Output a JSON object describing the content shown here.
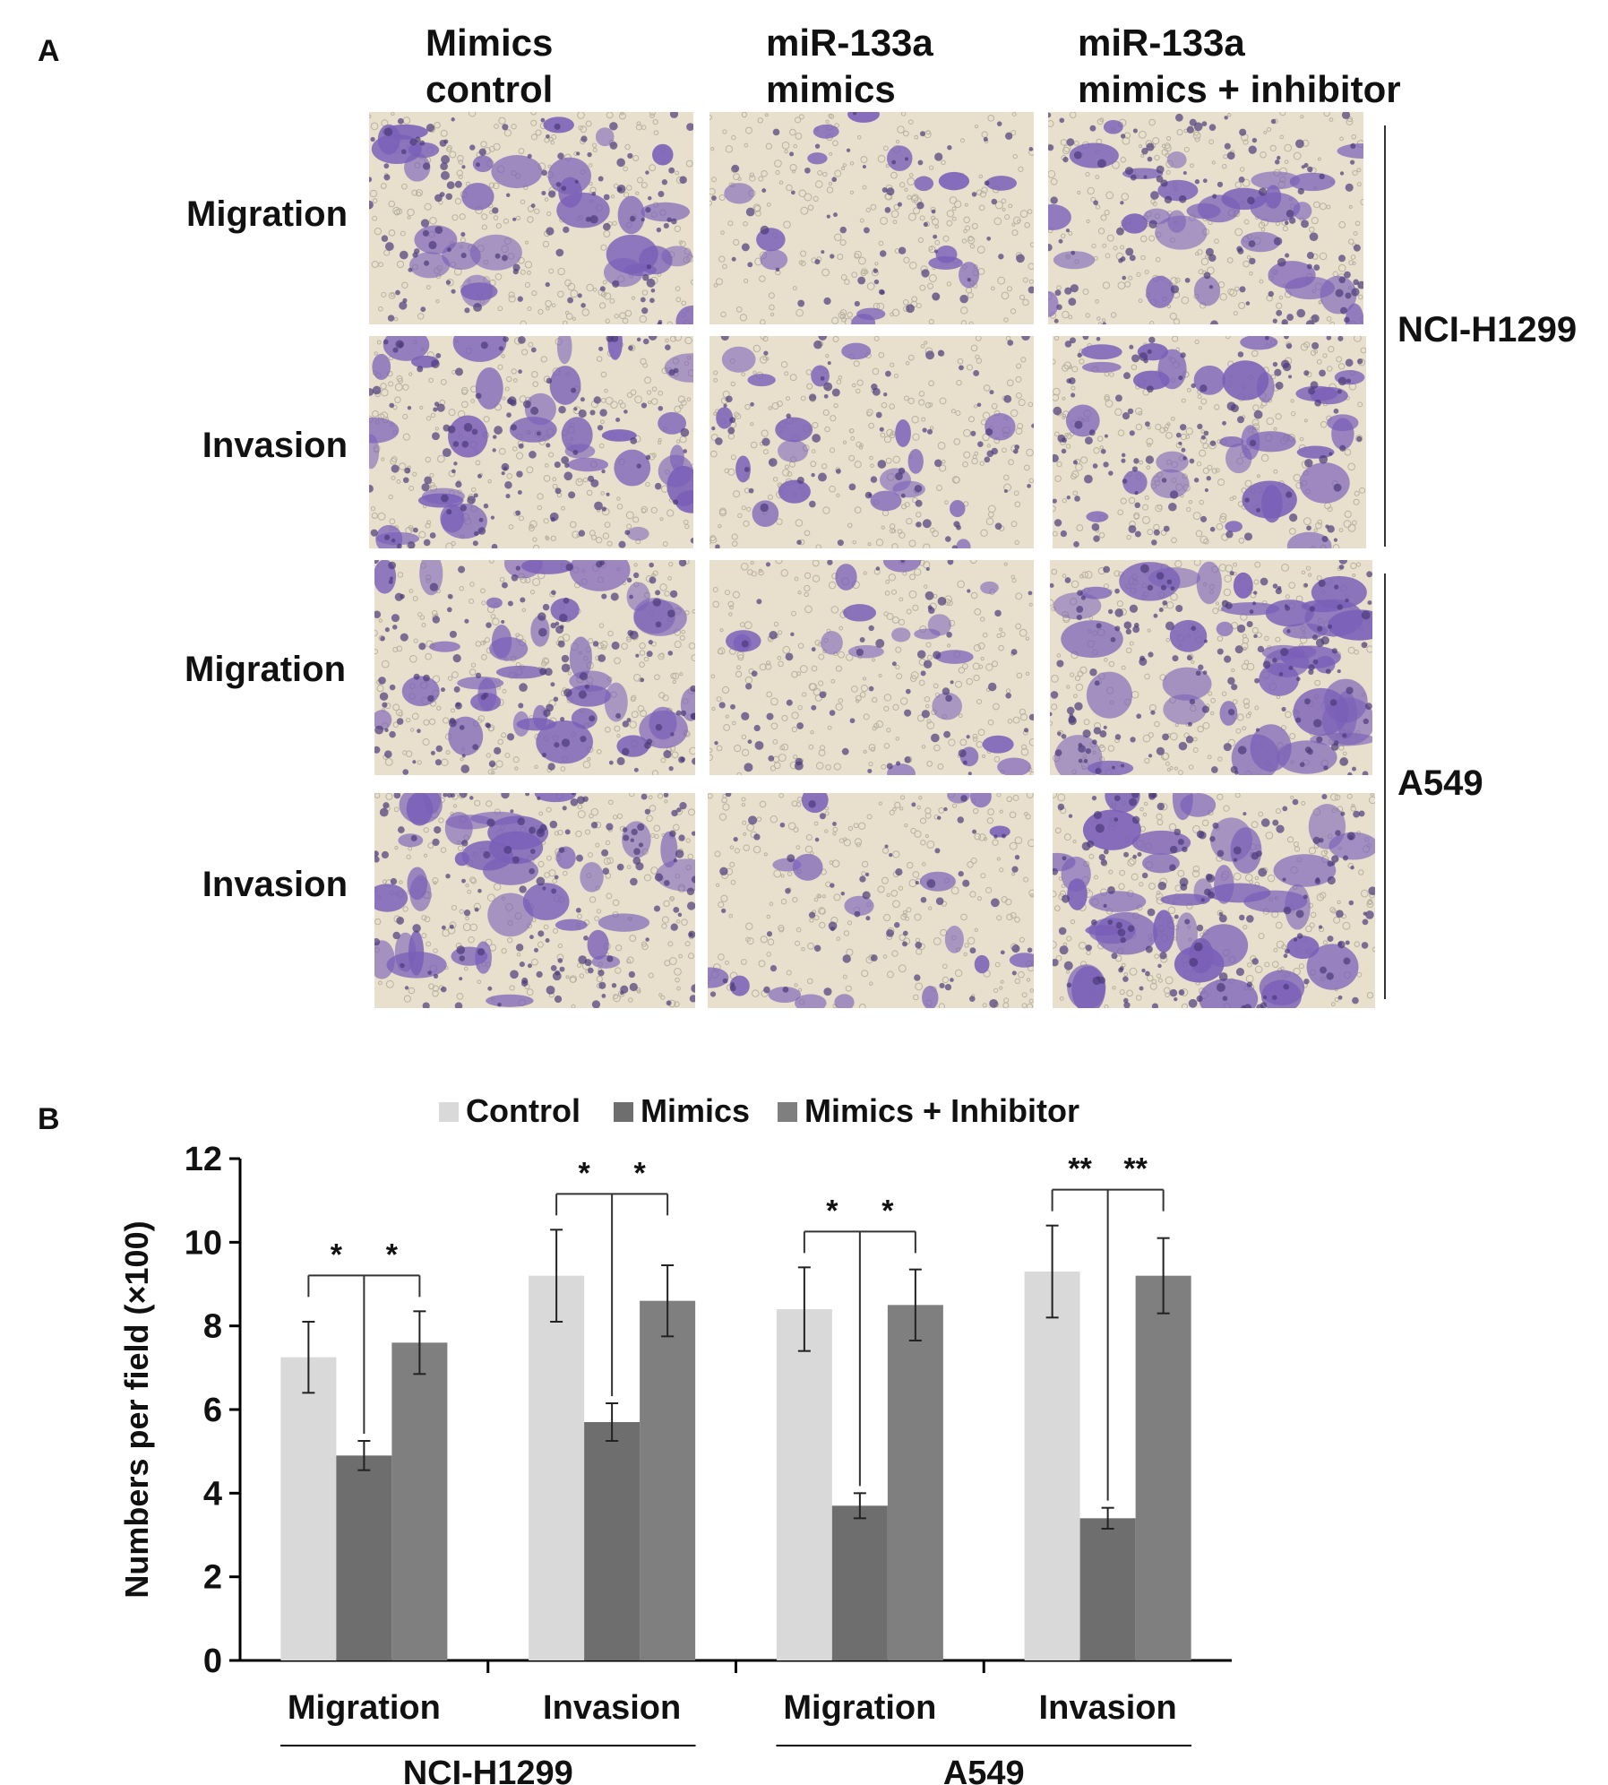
{
  "panel_a": {
    "letter": "A",
    "column_headers": [
      "Mimics\ncontrol",
      "miR-133a\nmimics",
      "miR-133a\nmimics + inhibitor"
    ],
    "row_labels": [
      "Migration",
      "Invasion",
      "Migration",
      "Invasion"
    ],
    "cell_lines": [
      "NCI-H1299",
      "A549"
    ],
    "stain_color": "#7a5fb8",
    "background_color": "#e8e0cc"
  },
  "panel_b": {
    "letter": "B"
  },
  "chart_data": {
    "type": "bar",
    "categories": [
      "Migration",
      "Invasion",
      "Migration",
      "Invasion"
    ],
    "groups": [
      "NCI-H1299",
      "A549"
    ],
    "ylabel": "Numbers per field (×100)",
    "xlabel": "",
    "title": "",
    "ylim": [
      0,
      12
    ],
    "yticks": [
      "0",
      "2",
      "4",
      "6",
      "8",
      "10",
      "12"
    ],
    "legend_position": "top",
    "grid": false,
    "series": [
      {
        "name": "Control",
        "color": "#d9d9d9",
        "values": [
          7.25,
          9.2,
          8.4,
          9.3
        ],
        "errors": [
          0.85,
          1.1,
          1.0,
          1.1
        ]
      },
      {
        "name": "Mimics",
        "color": "#6e6e6e",
        "values": [
          4.9,
          5.7,
          3.7,
          3.4
        ],
        "errors": [
          0.35,
          0.45,
          0.3,
          0.25
        ]
      },
      {
        "name": "Mimics + Inhibitor",
        "color": "#7f7f7f",
        "values": [
          7.6,
          8.6,
          8.5,
          9.2
        ],
        "errors": [
          0.75,
          0.85,
          0.85,
          0.9
        ]
      }
    ],
    "significance": [
      {
        "category": 0,
        "marks": [
          "*",
          "*"
        ]
      },
      {
        "category": 1,
        "marks": [
          "*",
          "*"
        ]
      },
      {
        "category": 2,
        "marks": [
          "*",
          "*"
        ]
      },
      {
        "category": 3,
        "marks": [
          "**",
          "**"
        ]
      }
    ]
  }
}
